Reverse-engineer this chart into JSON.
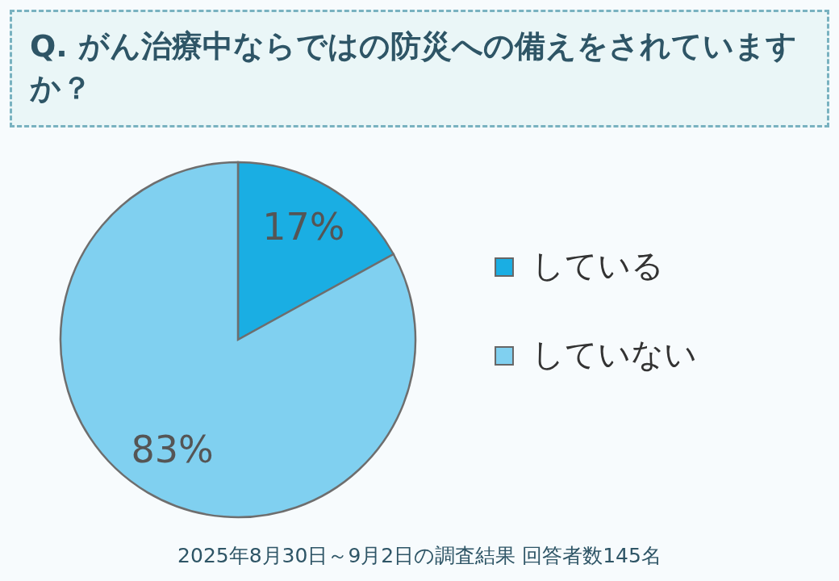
{
  "chart_data": {
    "type": "pie",
    "title": "Q. がん治療中ならではの防災への備えをされていますか？",
    "categories": [
      "している",
      "していない"
    ],
    "values": [
      17,
      83
    ],
    "colors": [
      "#1aaee3",
      "#80d0f0"
    ],
    "value_labels": [
      "17%",
      "83%"
    ],
    "legend": "right",
    "annotations": [
      "2025年8月30日～9月2日の調査結果  回答者数145名"
    ]
  }
}
